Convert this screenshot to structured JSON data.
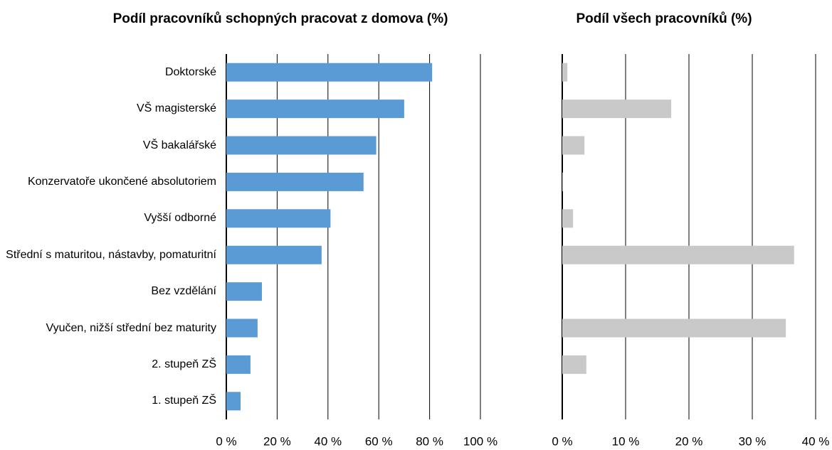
{
  "chart_data": [
    {
      "type": "bar",
      "orientation": "horizontal",
      "title": "Podíl pracovníků schopných pracovat z domova (%)",
      "categories": [
        "Doktorské",
        "VŠ magisterské",
        "VŠ bakalářské",
        "Konzervatoře ukončené absolutoriem",
        "Vyšší odborné",
        "Střední s maturitou, nástavby, pomaturitní",
        "Bez vzdělání",
        "Vyučen, nižší střední bez maturity",
        "2. stupeň ZŠ",
        "1. stupeň ZŠ"
      ],
      "values": [
        81,
        70,
        59,
        54,
        41,
        37.5,
        14,
        12.3,
        9.5,
        5.6
      ],
      "color": "#5b9bd5",
      "xlim": [
        0,
        100
      ],
      "xticks": [
        {
          "value": 0,
          "label": "0 %"
        },
        {
          "value": 20,
          "label": "20 %"
        },
        {
          "value": 40,
          "label": "40 %"
        },
        {
          "value": 60,
          "label": "60 %"
        },
        {
          "value": 80,
          "label": "80 %"
        },
        {
          "value": 100,
          "label": "100 %"
        }
      ],
      "grid": true
    },
    {
      "type": "bar",
      "orientation": "horizontal",
      "title": "Podíl všech pracovníků (%)",
      "values": [
        0.8,
        17.2,
        3.5,
        0.1,
        1.7,
        36.6,
        0,
        35.3,
        3.8,
        0
      ],
      "color": "#c9c9c9",
      "xlim": [
        0,
        40
      ],
      "xticks": [
        {
          "value": 0,
          "label": "0 %"
        },
        {
          "value": 10,
          "label": "10 %"
        },
        {
          "value": 20,
          "label": "20 %"
        },
        {
          "value": 30,
          "label": "30 %"
        },
        {
          "value": 40,
          "label": "40 %"
        }
      ],
      "grid": true
    }
  ]
}
